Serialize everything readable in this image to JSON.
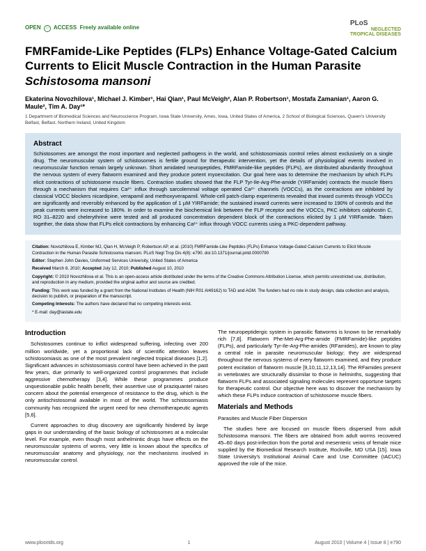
{
  "header": {
    "open_access_text": "OPEN",
    "freely_available": "Freely available online",
    "access_label": "ACCESS",
    "journal_plos": "PLoS",
    "journal_sub1": "NEGLECTED",
    "journal_sub2": "TROPICAL DISEASES"
  },
  "title_lines": "FMRFamide-Like Peptides (FLPs) Enhance Voltage-Gated Calcium Currents to Elicit Muscle Contraction in the Human Parasite ",
  "title_italic": "Schistosoma mansoni",
  "authors_html": "Ekaterina Novozhilova¹, Michael J. Kimber¹, Hai Qian¹, Paul McVeigh², Alan P. Robertson¹, Mostafa Zamanian¹, Aaron G. Maule², Tim A. Day¹*",
  "affiliations": "1 Department of Biomedical Sciences and Neuroscience Program, Iowa State University, Ames, Iowa, United States of America, 2 School of Biological Sciences, Queen's University Belfast, Belfast, Northern Ireland, United Kingdom",
  "abstract": {
    "heading": "Abstract",
    "text": "Schistosomes are amongst the most important and neglected pathogens in the world, and schistosomiasis control relies almost exclusively on a single drug. The neuromuscular system of schistosomes is fertile ground for therapeutic intervention, yet the details of physiological events involved in neuromuscular function remain largely unknown. Short amidated neuropeptides, FMRFamide-like peptides (FLPs), are distributed abundantly throughout the nervous system of every flatworm examined and they produce potent myoexcitation. Our goal here was to determine the mechanism by which FLPs elicit contractions of schistosome muscle fibers. Contraction studies showed that the FLP Tyr-Ile-Arg-Phe-amide (YIRFamide) contracts the muscle fibers through a mechanism that requires Ca²⁺ influx through sarcolemmal voltage operated Ca²⁺ channels (VOCCs), as the contractions are inhibited by classical VOCC blockers nicardipine, verapamil and methoxyverapamil. Whole-cell patch-clamp experiments revealed that inward currents through VOCCs are significantly and reversibly enhanced by the application of 1 µM YIRFamide; the sustained inward currents were increased to 190% of controls and the peak currents were increased to 180%. In order to examine the biochemical link between the FLP receptor and the VOCCs, PKC inhibitors calphostin C, RO 31–8220 and chelerythrine were tested and all produced concentration dependent block of the contractions elicited by 1 µM YIRFamide. Taken together, the data show that FLPs elicit contractions by enhancing Ca²⁺ influx through VOCC currents using a PKC-dependent pathway."
  },
  "citation": {
    "cite": "Novozhilova E, Kimber MJ, Qian H, McVeigh P, Robertson AP, et al. (2010) FMRFamide-Like Peptides (FLPs) Enhance Voltage-Gated Calcium Currents to Elicit Muscle Contraction in the Human Parasite Schistosoma mansoni. PLoS Negl Trop Dis 4(8): e790. doi:10.1371/journal.pntd.0000790",
    "editor": "Stephen John Davies, Uniformed Services University, United States of America",
    "received": "March 8, 2010;",
    "accepted": "July 12, 2010;",
    "published": "August 10, 2010",
    "copyright": "© 2010 Novozhilova et al. This is an open-access article distributed under the terms of the Creative Commons Attribution License, which permits unrestricted use, distribution, and reproduction in any medium, provided the original author and source are credited.",
    "funding": "This work was funded by a grant from the National Institutes of Health (NIH R01 AI49162) to TAD and AGM. The funders had no role in study design, data collection and analysis, decision to publish, or preparation of the manuscript.",
    "competing": "The authors have declared that no competing interests exist.",
    "email": "* E-mail: day@iastate.edu"
  },
  "body": {
    "intro_heading": "Introduction",
    "intro_p1": "Schistosomes continue to inflict widespread suffering, infecting over 200 million worldwide, yet a proportional lack of scientific attention leaves schistosomiasis as one of the most prevalent neglected tropical diseases [1,2]. Significant advances in schistosomiasis control have been achieved in the past few years, due primarily to well-organized control programmes that include aggressive chemotherapy [3,4]. While these programmes produce unquestionable public health benefit, their assertive use of praziquantel raises concern about the potential emergence of resistance to the drug, which is the only antischistosomal available in most of the world. The schistosomiasis community has recognized the urgent need for new chemotherapeutic agents [5,6].",
    "intro_p2": "Current approaches to drug discovery are significantly hindered by large gaps in our understanding of the basic biology of schistosomes at a molecular level. For example, even though most anthelmintic drugs have effects on the neuromuscular systems of worms, very little is known about the specifics of neuromuscular anatomy and physiology, nor the mechanisms involved in neuromuscular control.",
    "col2_p1": "The neuropeptidergic system in parasitic flatworms is known to be remarkably rich [7,8]. Flatworm Phe-Met-Arg-Phe-amide (FMRFamide)-like peptides (FLPs), and particularly Tyr-Ile-Arg-Phe-amides (RFamides), are known to play a central role in parasite neuromuscular biology; they are widespread throughout the nervous systems of every flatworm examined, and they produce potent excitation of flatworm muscle [9,10,11,12,13,14]. The RFamides present in vertebrates are structurally dissimilar to those in helminths, suggesting that flatworm FLPs and associated signaling molecules represent opportune targets for therapeutic control. Our objective here was to discover the mechanism by which these FLPs induce contraction of schistosome muscle fibers.",
    "mm_heading": "Materials and Methods",
    "mm_sub": "Parasites and Muscle Fiber Dispersion",
    "mm_p1": "The studies here are focused on muscle fibers dispersed from adult Schistosoma mansoni. The fibers are obtained from adult worms recovered 45–60 days post-infection from the portal and mesenteric veins of female mice supplied by the Biomedical Research Institute, Rockville, MD USA [15]. Iowa State University's Institutional Animal Care and Use Committee (IACUC) approved the role of the mice."
  },
  "footer": {
    "url": "www.plosntds.org",
    "page": "1",
    "issue": "August 2010 | Volume 4 | Issue 8 | e790"
  }
}
